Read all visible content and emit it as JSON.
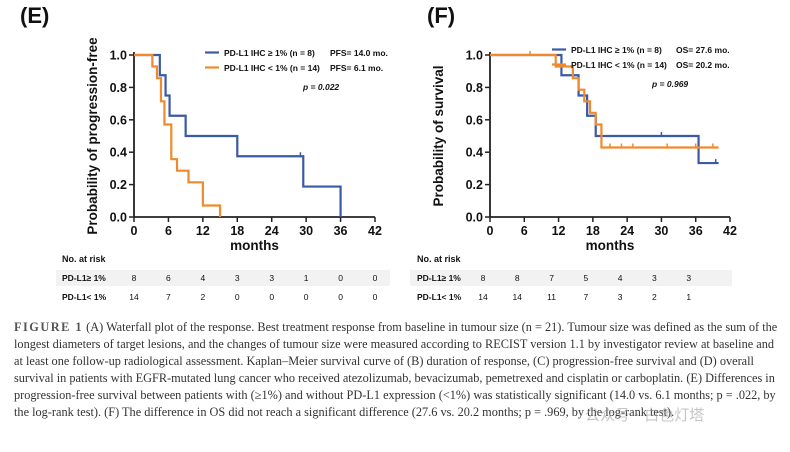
{
  "panels": [
    {
      "id": "E",
      "label": "(E)",
      "chart_data": {
        "type": "line",
        "step": true,
        "ylabel": "Probability of progression-free",
        "xlabel": "months",
        "xlim": [
          0,
          42
        ],
        "ylim": [
          0,
          1.0
        ],
        "xticks": [
          0,
          6,
          12,
          18,
          24,
          30,
          36,
          42
        ],
        "yticks": [
          0.0,
          0.2,
          0.4,
          0.6,
          0.8,
          1.0
        ],
        "yticklabels": [
          "0.0",
          "0.2",
          "0.4",
          "0.6",
          "0.8",
          "1.0"
        ],
        "legend": [
          {
            "label": "PD-L1 IHC ≥ 1% (n =  8)",
            "stat": "PFS= 14.0 mo.",
            "color": "#3a5aa6"
          },
          {
            "label": "PD-L1 IHC < 1% (n = 14)",
            "stat": "PFS=   6.1 mo.",
            "color": "#ef8a2e"
          }
        ],
        "pvalue": "p = 0.022",
        "series": [
          {
            "color": "#3a5aa6",
            "x": [
              0,
              3.5,
              4.5,
              5.5,
              6.2,
              9,
              18,
              29.5,
              36
            ],
            "y": [
              1.0,
              1.0,
              0.875,
              0.75,
              0.625,
              0.5,
              0.375,
              0.188,
              0.0
            ],
            "censor": [
              [
                29,
                0.375
              ]
            ]
          },
          {
            "color": "#ef8a2e",
            "x": [
              0,
              2.5,
              3.2,
              4.0,
              4.7,
              5.3,
              6.5,
              7.5,
              9.5,
              12,
              15
            ],
            "y": [
              1.0,
              1.0,
              0.929,
              0.857,
              0.714,
              0.571,
              0.357,
              0.286,
              0.214,
              0.071,
              0.0
            ],
            "censor": []
          }
        ]
      },
      "risk_table": {
        "title": "No. at risk",
        "rows": [
          {
            "label": "PD-L1≥ 1%",
            "values": [
              "8",
              "6",
              "4",
              "3",
              "3",
              "1",
              "0",
              "0"
            ]
          },
          {
            "label": "PD-L1< 1%",
            "values": [
              "14",
              "7",
              "2",
              "0",
              "0",
              "0",
              "0",
              "0"
            ]
          }
        ]
      }
    },
    {
      "id": "F",
      "label": "(F)",
      "chart_data": {
        "type": "line",
        "step": true,
        "ylabel": "Probability of survival",
        "xlabel": "months",
        "xlim": [
          0,
          42
        ],
        "ylim": [
          0,
          1.0
        ],
        "xticks": [
          0,
          6,
          12,
          18,
          24,
          30,
          36,
          42
        ],
        "yticks": [
          0.0,
          0.2,
          0.4,
          0.6,
          0.8,
          1.0
        ],
        "yticklabels": [
          "0.0",
          "0.2",
          "0.4",
          "0.6",
          "0.8",
          "1.0"
        ],
        "legend": [
          {
            "label": "PD-L1 IHC ≥ 1% (n =  8)",
            "stat": "OS= 27.6 mo.",
            "color": "#3a5aa6"
          },
          {
            "label": "PD-L1 IHC < 1% (n = 14)",
            "stat": "OS= 20.2 mo.",
            "color": "#ef8a2e"
          }
        ],
        "pvalue": "p = 0.969",
        "series": [
          {
            "color": "#3a5aa6",
            "x": [
              0,
              9,
              12.5,
              15.5,
              17,
              18.5,
              36.5,
              40
            ],
            "y": [
              1.0,
              1.0,
              0.875,
              0.75,
              0.625,
              0.5,
              0.333,
              0.333
            ],
            "censor": [
              [
                30,
                0.5
              ],
              [
                39.5,
                0.333
              ]
            ]
          },
          {
            "color": "#ef8a2e",
            "x": [
              0,
              8.5,
              11.5,
              14.5,
              15.5,
              16.5,
              17.5,
              18.5,
              19.5,
              40
            ],
            "y": [
              1.0,
              1.0,
              0.929,
              0.857,
              0.786,
              0.714,
              0.643,
              0.571,
              0.429,
              0.429
            ],
            "censor": [
              [
                7,
                1.0
              ],
              [
                21,
                0.429
              ],
              [
                23,
                0.429
              ],
              [
                25,
                0.429
              ],
              [
                31,
                0.429
              ],
              [
                36,
                0.429
              ],
              [
                39,
                0.429
              ]
            ]
          }
        ]
      },
      "risk_table": {
        "title": "No. at risk",
        "rows": [
          {
            "label": "PD-L1≥ 1%",
            "values": [
              "8",
              "8",
              "7",
              "5",
              "4",
              "3",
              "3"
            ]
          },
          {
            "label": "PD-L1< 1%",
            "values": [
              "14",
              "14",
              "11",
              "7",
              "3",
              "2",
              "1"
            ]
          }
        ]
      }
    }
  ],
  "caption": {
    "figure_label": "FIGURE 1",
    "text": "(A) Waterfall plot of the response. Best treatment response from baseline in tumour size (n = 21). Tumour size was defined as the sum of the longest diameters of target lesions, and the changes of tumour size were measured according to RECIST version 1.1 by investigator review at baseline and at least one follow-up radiological assessment. Kaplan–Meier survival curve of (B) duration of response, (C) progression-free survival and (D) overall survival in patients with EGFR-mutated lung cancer who received atezolizumab, bevacizumab, pemetrexed and cisplatin or carboplatin. (E) Differences in progression-free survival between patients with (≥1%) and without PD-L1 expression (<1%) was statistically significant (14.0 vs. 6.1 months; p = .022, by the log-rank test). (F) The difference in OS did not reach a significant difference (27.6 vs. 20.2 months; p = .969, by the log-rank test)."
  },
  "watermark": "公众号 · 白色灯塔"
}
